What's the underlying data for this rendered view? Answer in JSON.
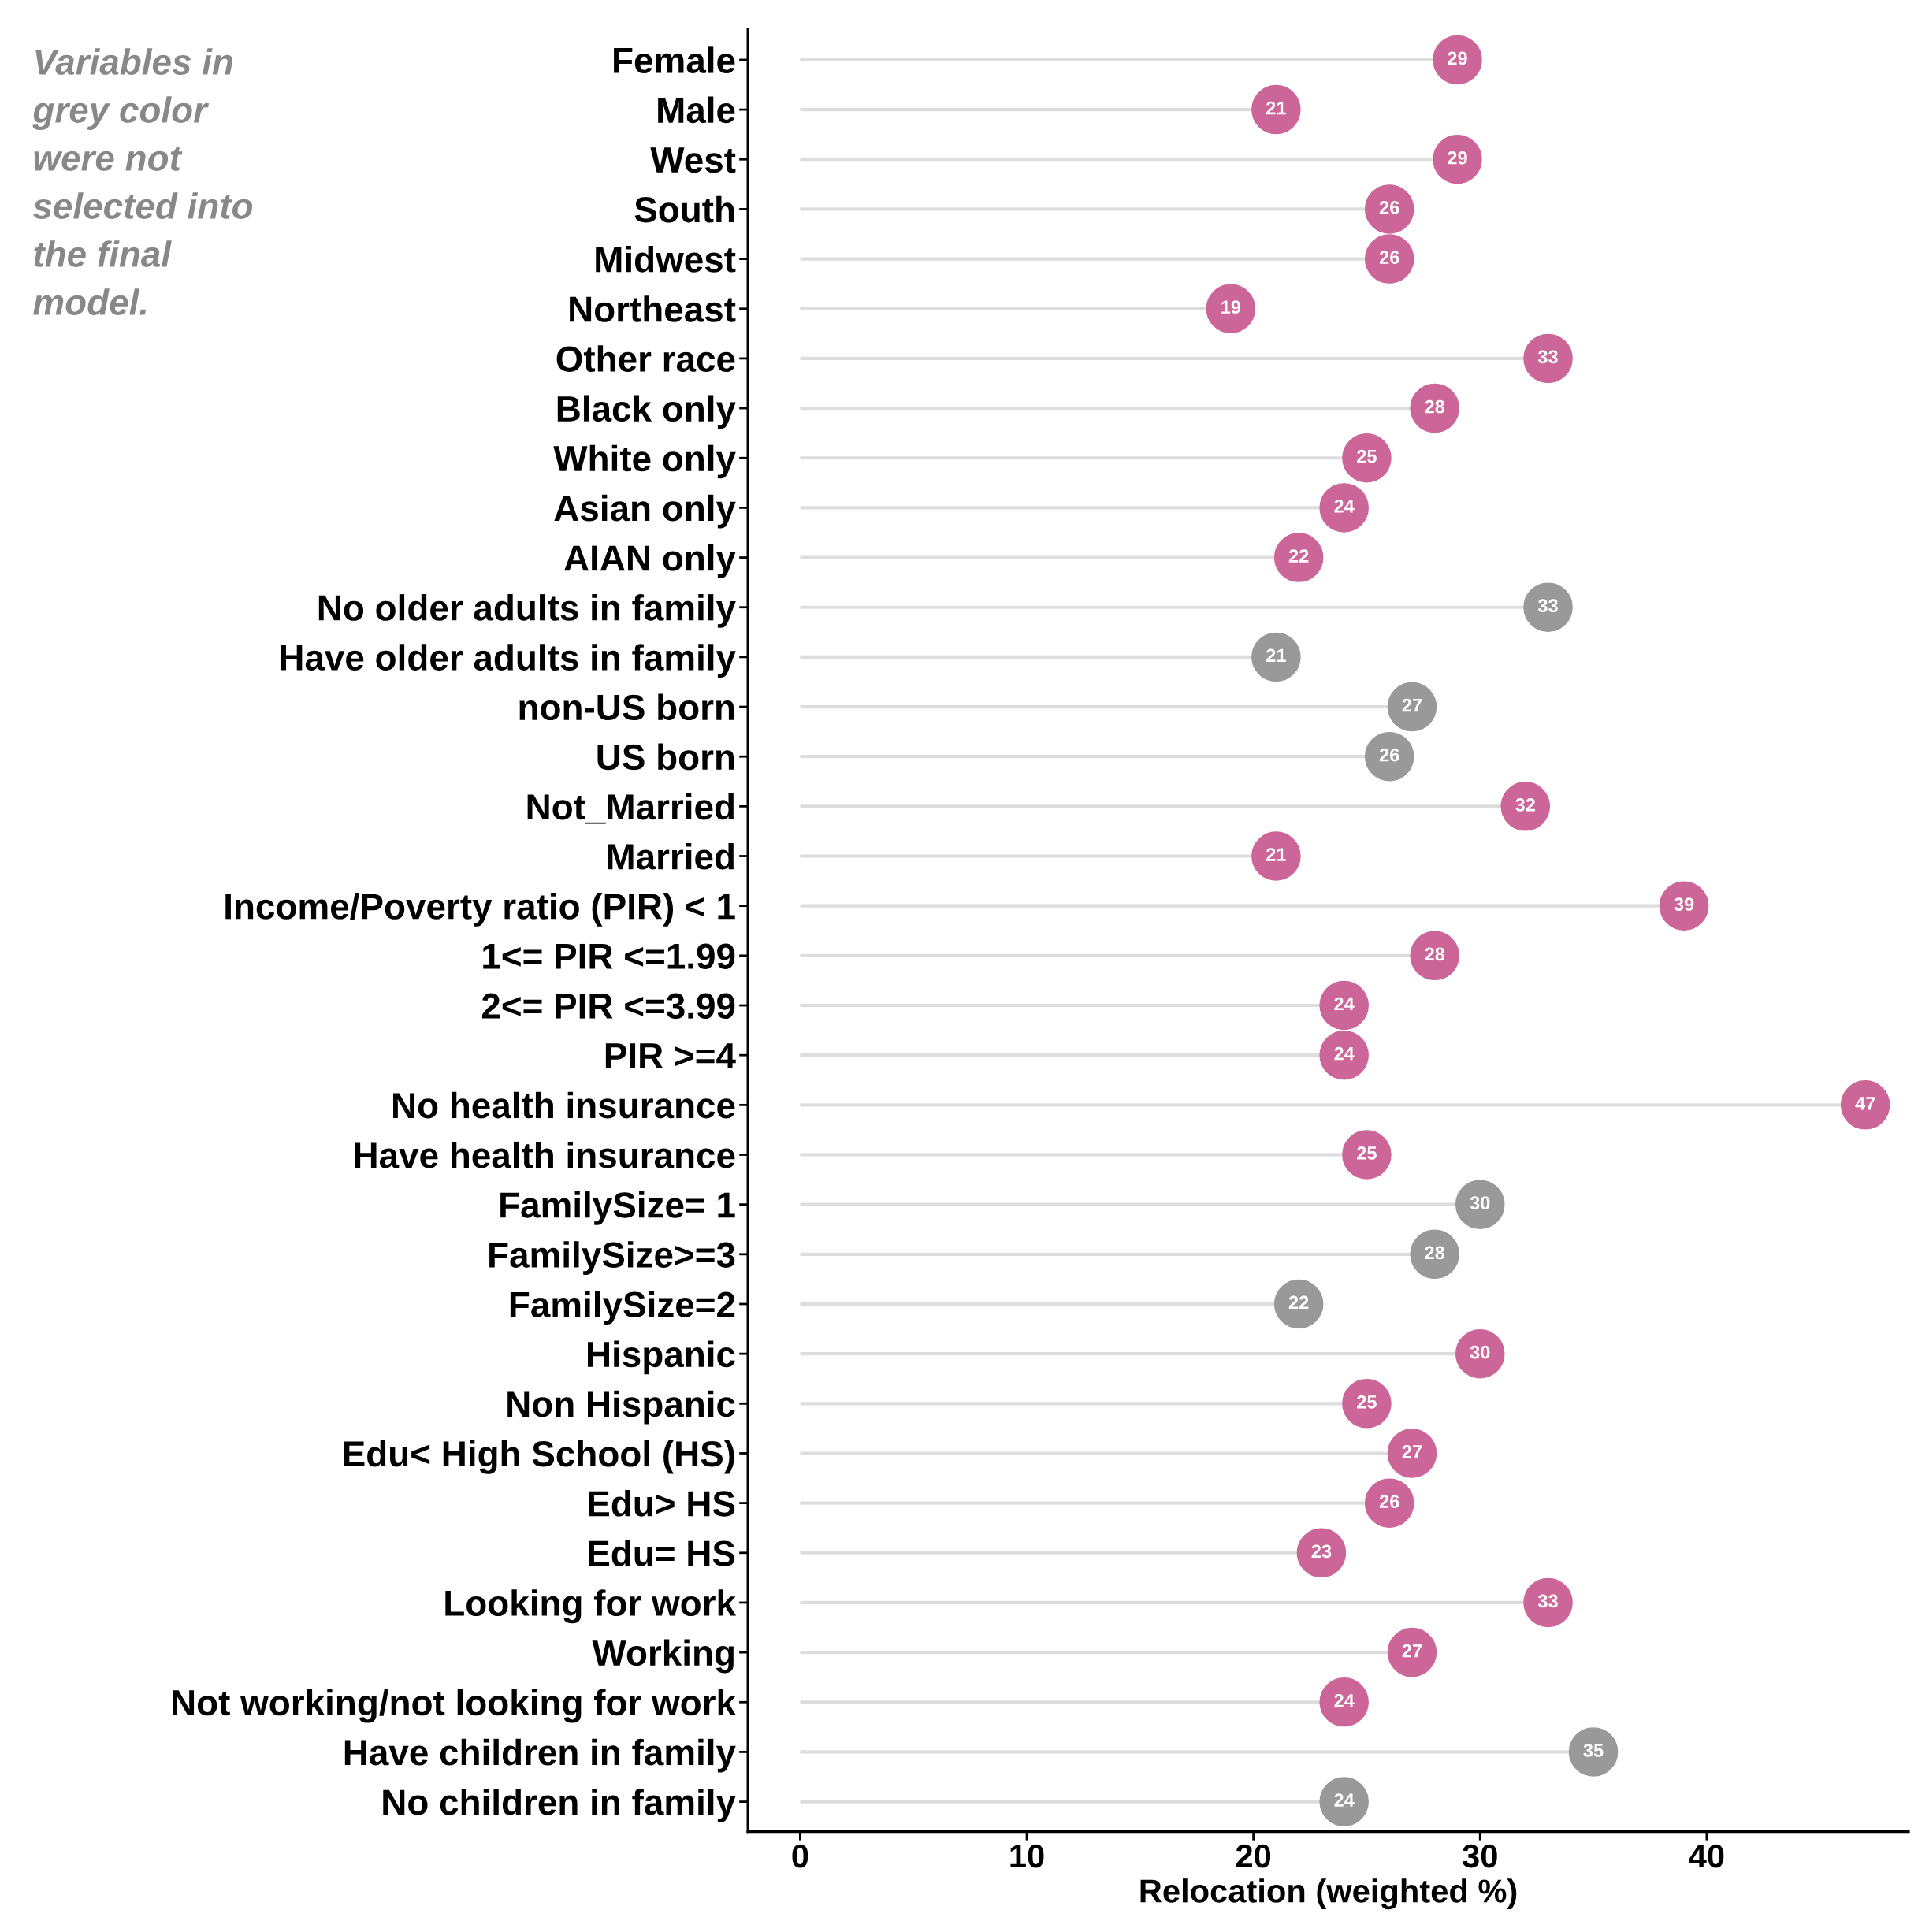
{
  "chart_data": {
    "type": "lollipop",
    "orientation": "horizontal",
    "categories": [
      "Female",
      "Male",
      "West",
      "South",
      "Midwest",
      "Northeast",
      "Other race",
      "Black only",
      "White only",
      "Asian only",
      "AIAN only",
      "No older adults in family",
      "Have older adults in family",
      "non-US born",
      "US born",
      "Not_Married",
      "Married",
      "Income/Poverty ratio (PIR) < 1",
      "1<= PIR <=1.99",
      "2<= PIR <=3.99",
      "PIR >=4",
      "No health insurance",
      "Have health insurance",
      "FamilySize= 1",
      "FamilySize>=3",
      "FamilySize=2",
      "Hispanic",
      "Non Hispanic",
      "Edu< High School (HS)",
      "Edu> HS",
      "Edu= HS",
      "Looking for work",
      "Working",
      "Not working/not looking for work",
      "Have children in family",
      "No children in family"
    ],
    "values": [
      29,
      21,
      29,
      26,
      26,
      19,
      33,
      28,
      25,
      24,
      22,
      33,
      21,
      27,
      26,
      32,
      21,
      39,
      28,
      24,
      24,
      47,
      25,
      30,
      28,
      22,
      30,
      25,
      27,
      26,
      23,
      33,
      27,
      24,
      35,
      24
    ],
    "colors": [
      "#cc6699",
      "#cc6699",
      "#cc6699",
      "#cc6699",
      "#cc6699",
      "#cc6699",
      "#cc6699",
      "#cc6699",
      "#cc6699",
      "#cc6699",
      "#cc6699",
      "#999999",
      "#999999",
      "#999999",
      "#999999",
      "#cc6699",
      "#cc6699",
      "#cc6699",
      "#cc6699",
      "#cc6699",
      "#cc6699",
      "#cc6699",
      "#cc6699",
      "#999999",
      "#999999",
      "#999999",
      "#cc6699",
      "#cc6699",
      "#cc6699",
      "#cc6699",
      "#cc6699",
      "#cc6699",
      "#cc6699",
      "#cc6699",
      "#999999",
      "#999999"
    ],
    "data_labels": true,
    "marker": "circle",
    "xlabel": "Relocation (weighted %)",
    "xlim": [
      -2.3,
      48.9
    ],
    "xticks": [
      0,
      10,
      20,
      30,
      40
    ],
    "annotations": [
      "Variables in\ngrey color\nwere not\nselected into\nthe final\nmodel."
    ]
  }
}
